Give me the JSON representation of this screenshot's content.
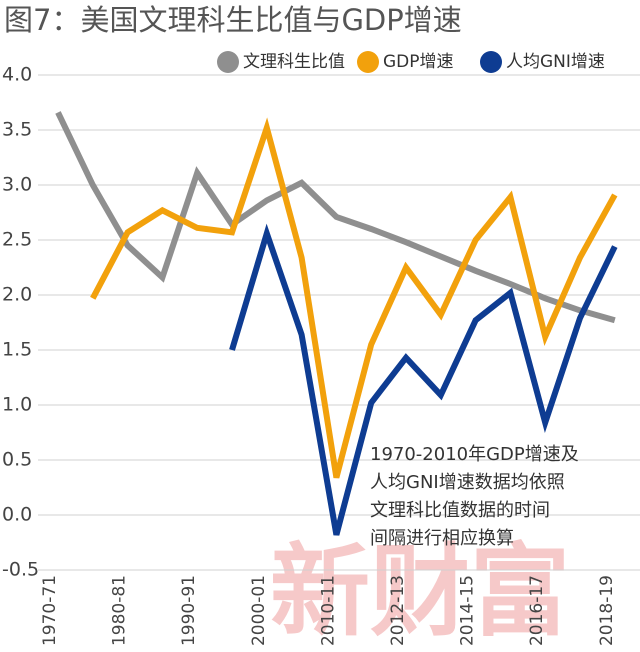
{
  "chart_data": {
    "type": "line",
    "title": "图7：美国文理科生比值与GDP增速",
    "categories": [
      "1970-71",
      null,
      "1980-81",
      null,
      "1990-91",
      null,
      "2000-01",
      null,
      "2010-11",
      null,
      "2012-13",
      null,
      "2014-15",
      null,
      "2016-17",
      null,
      "2018-19"
    ],
    "series": [
      {
        "name": "文理科生比值",
        "color": "#8f8f8f",
        "values": [
          3.66,
          3.0,
          2.45,
          2.16,
          3.11,
          2.64,
          2.86,
          3.02,
          2.71,
          2.6,
          2.48,
          2.35,
          2.22,
          2.1,
          1.97,
          1.86,
          1.77
        ]
      },
      {
        "name": "GDP增速",
        "color": "#f2a10c",
        "values": [
          null,
          1.97,
          2.57,
          2.77,
          2.61,
          2.57,
          3.52,
          2.34,
          0.34,
          1.55,
          2.25,
          1.82,
          2.5,
          2.89,
          1.62,
          2.34,
          2.91
        ]
      },
      {
        "name": "人均GNI增速",
        "color": "#0e3c92",
        "values": [
          null,
          null,
          null,
          null,
          null,
          1.5,
          2.56,
          1.64,
          -0.18,
          1.02,
          1.43,
          1.09,
          1.77,
          2.02,
          0.84,
          1.79,
          2.44
        ]
      }
    ],
    "ylim": [
      -0.5,
      4.0
    ],
    "yticks": [
      -0.5,
      {
        "value": 0,
        "label": "0.0"
      },
      0.5,
      {
        "value": 1,
        "label": "1.0"
      },
      1.5,
      {
        "value": 2,
        "label": "2.0"
      },
      2.5,
      {
        "value": 3,
        "label": "3.0"
      },
      3.5,
      {
        "value": 4,
        "label": "4.0"
      }
    ],
    "grid": true,
    "legend": "top-right",
    "annotation": [
      "1970-2010年GDP增速及",
      "人均GNI增速数据均依照",
      "文理科比值数据的时间",
      "间隔进行相应换算"
    ],
    "watermark": "新财富"
  }
}
